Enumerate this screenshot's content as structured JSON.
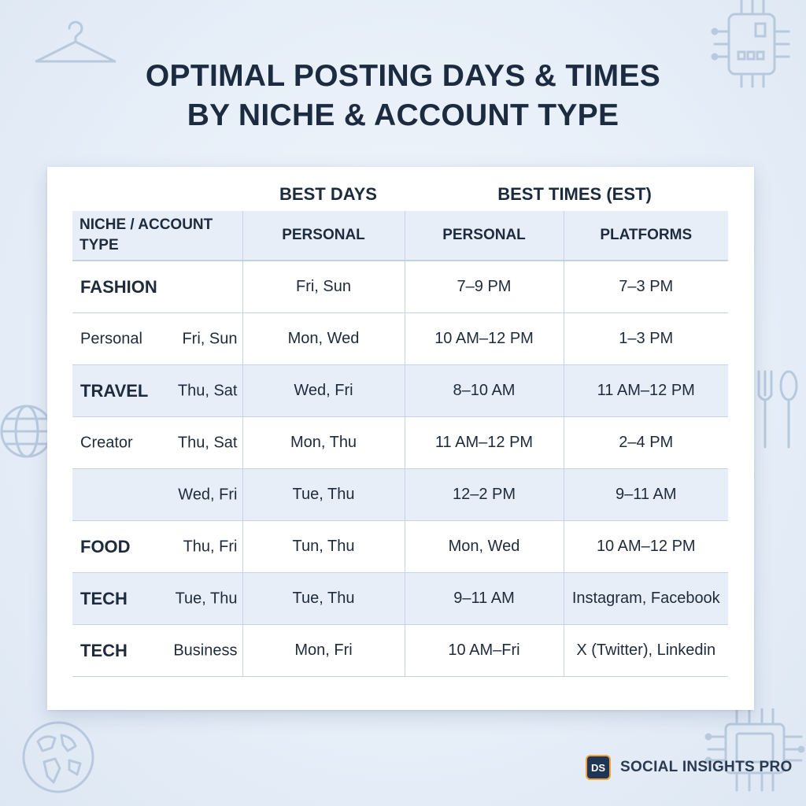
{
  "title": {
    "line1": "OPTIMAL POSTING DAYS & TIMES",
    "line2": "BY NICHE & ACCOUNT TYPE"
  },
  "table": {
    "group_headers": {
      "best_days": "BEST DAYS",
      "best_times": "BEST TIMES (EST)"
    },
    "columns": [
      "NICHE / ACCOUNT TYPE",
      "PERSONAL",
      "PERSONAL",
      "PLATFORMS"
    ],
    "rows": [
      {
        "niche": "FASHION",
        "sub": "",
        "bold": true,
        "shaded": false,
        "cells": [
          "Fri, Sun",
          "7–9 PM",
          "7–3 PM"
        ]
      },
      {
        "niche": "Personal",
        "sub": "Fri, Sun",
        "bold": false,
        "shaded": false,
        "cells": [
          "Mon, Wed",
          "10 AM–12 PM",
          "1–3 PM"
        ]
      },
      {
        "niche": "TRAVEL",
        "sub": "Thu, Sat",
        "bold": true,
        "shaded": true,
        "cells": [
          "Wed, Fri",
          "8–10 AM",
          "11 AM–12 PM"
        ]
      },
      {
        "niche": "Creator",
        "sub": "Thu, Sat",
        "bold": false,
        "shaded": false,
        "cells": [
          "Mon, Thu",
          "11 AM–12 PM",
          "2–4 PM"
        ]
      },
      {
        "niche": "",
        "sub": "Wed, Fri",
        "bold": false,
        "shaded": true,
        "cells": [
          "Tue, Thu",
          "12–2 PM",
          "9–11 AM"
        ]
      },
      {
        "niche": "FOOD",
        "sub": "Thu, Fri",
        "bold": true,
        "shaded": false,
        "cells": [
          "Tun, Thu",
          "Mon, Wed",
          "10 AM–12 PM"
        ]
      },
      {
        "niche": "TECH",
        "sub": "Tue, Thu",
        "bold": true,
        "shaded": true,
        "cells": [
          "Tue, Thu",
          "9–11 AM",
          "Instagram, Facebook"
        ]
      },
      {
        "niche": "TECH",
        "sub": "Business",
        "bold": true,
        "shaded": false,
        "cells": [
          "Mon, Fri",
          "10 AM–Fri",
          "X (Twitter), Linkedin"
        ]
      }
    ]
  },
  "brand": {
    "logo_text": "DS",
    "name": "SOCIAL INSIGHTS PRO"
  },
  "icons": [
    "hanger-icon",
    "chip-icon",
    "globe-icon",
    "fork-spoon-icon",
    "world-map-icon",
    "circuit-icon"
  ],
  "colors": {
    "title": "#1c2b40",
    "header_bg": "#e7eef7",
    "grid": "#c7d3e2",
    "brand_accent": "#f2a23a"
  }
}
